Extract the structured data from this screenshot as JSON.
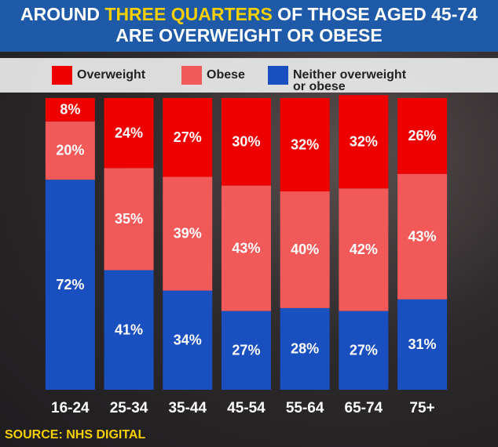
{
  "chart_data": {
    "type": "stacked_bar",
    "title": "AROUND THREE QUARTERS OF THOSE AGED 45-74 ARE OVERWEIGHT OR OBESE",
    "title_highlight": "THREE QUARTERS",
    "categories": [
      "16-24",
      "25-34",
      "35-44",
      "45-54",
      "55-64",
      "65-74",
      "75+"
    ],
    "series": [
      {
        "name": "Overweight",
        "color": "#ee0000",
        "values": [
          8,
          24,
          27,
          30,
          32,
          32,
          26
        ],
        "value_labels": [
          "8%",
          "24%",
          "27%",
          "30%",
          "32%",
          "32%",
          "26%"
        ]
      },
      {
        "name": "Obese",
        "color": "#f25a5a",
        "values": [
          20,
          35,
          39,
          43,
          40,
          42,
          43
        ],
        "value_labels": [
          "20%",
          "35%",
          "39%",
          "43%",
          "40%",
          "42%",
          "43%"
        ]
      },
      {
        "name": "Neither overweight or obese",
        "color": "#1a4fbf",
        "values": [
          72,
          41,
          34,
          27,
          28,
          27,
          31
        ],
        "value_labels": [
          "72%",
          "41%",
          "34%",
          "27%",
          "28%",
          "27%",
          "31%"
        ]
      }
    ],
    "ylim": [
      0,
      100
    ],
    "source": "SOURCE: NHS DIGITAL"
  }
}
